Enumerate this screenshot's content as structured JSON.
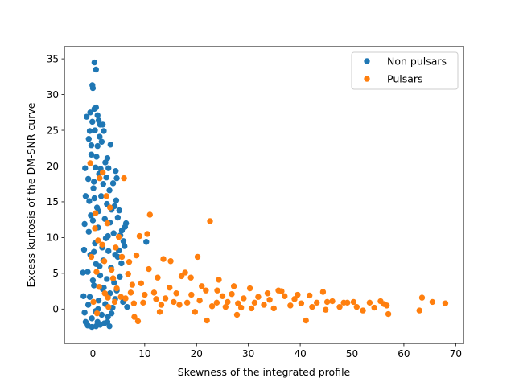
{
  "chart_data": {
    "type": "scatter",
    "title": "",
    "xlabel": "Skewness of the integrated profile",
    "ylabel": "Excess kurtosis of the DM-SNR curve",
    "xlim": [
      -5.5,
      71.5
    ],
    "ylim": [
      -4.8,
      36.7
    ],
    "xticks": [
      0,
      10,
      20,
      30,
      40,
      50,
      60,
      70
    ],
    "yticks": [
      0,
      5,
      10,
      15,
      20,
      25,
      30,
      35
    ],
    "grid": false,
    "legend_position": "top-right",
    "series": [
      {
        "name": "Non pulsars",
        "color": "#1f77b4",
        "points": [
          [
            0.3,
            34.5
          ],
          [
            0.6,
            33.5
          ],
          [
            -0.1,
            31.3
          ],
          [
            0.0,
            30.9
          ],
          [
            -1.2,
            26.9
          ],
          [
            0.3,
            28.0
          ],
          [
            0.6,
            28.2
          ],
          [
            -0.5,
            27.5
          ],
          [
            1.4,
            25.8
          ],
          [
            1.9,
            25.8
          ],
          [
            2.1,
            24.9
          ],
          [
            1.1,
            26.4
          ],
          [
            -0.8,
            23.8
          ],
          [
            3.4,
            23.0
          ],
          [
            2.8,
            21.1
          ],
          [
            3.0,
            19.7
          ],
          [
            4.4,
            19.3
          ],
          [
            4.6,
            18.3
          ],
          [
            3.9,
            17.6
          ],
          [
            4.5,
            15.2
          ],
          [
            4.2,
            14.4
          ],
          [
            5.1,
            13.8
          ],
          [
            4.8,
            12.8
          ],
          [
            6.4,
            12.0
          ],
          [
            6.2,
            11.5
          ],
          [
            5.6,
            11.0
          ],
          [
            5.3,
            10.3
          ],
          [
            5.9,
            9.5
          ],
          [
            6.1,
            8.8
          ],
          [
            10.3,
            9.4
          ],
          [
            5.0,
            8.2
          ],
          [
            4.3,
            7.6
          ],
          [
            -1.5,
            19.7
          ],
          [
            -1.4,
            15.8
          ],
          [
            -1.6,
            11.9
          ],
          [
            -1.7,
            8.3
          ],
          [
            -1.9,
            5.1
          ],
          [
            -1.8,
            1.8
          ],
          [
            -1.6,
            -0.5
          ],
          [
            -1.4,
            -1.8
          ],
          [
            -1.0,
            -2.3
          ],
          [
            -0.2,
            -2.5
          ],
          [
            0.6,
            -2.4
          ],
          [
            1.4,
            -2.2
          ],
          [
            2.2,
            -2.0
          ],
          [
            2.8,
            -1.8
          ],
          [
            3.2,
            -2.4
          ],
          [
            -0.6,
            24.9
          ],
          [
            0.9,
            22.8
          ],
          [
            1.7,
            23.4
          ],
          [
            -0.3,
            21.6
          ],
          [
            2.4,
            20.5
          ],
          [
            0.5,
            19.8
          ],
          [
            1.2,
            18.9
          ],
          [
            -0.9,
            18.2
          ],
          [
            2.0,
            17.5
          ],
          [
            3.2,
            16.6
          ],
          [
            0.1,
            16.9
          ],
          [
            1.6,
            15.8
          ],
          [
            -0.7,
            15.1
          ],
          [
            2.7,
            14.7
          ],
          [
            3.6,
            13.9
          ],
          [
            0.8,
            14.2
          ],
          [
            -0.4,
            13.1
          ],
          [
            2.3,
            12.6
          ],
          [
            3.3,
            12.1
          ],
          [
            1.0,
            11.4
          ],
          [
            -0.8,
            10.8
          ],
          [
            4.0,
            10.6
          ],
          [
            2.5,
            9.9
          ],
          [
            0.4,
            9.2
          ],
          [
            1.8,
            8.6
          ],
          [
            3.0,
            8.1
          ],
          [
            -0.5,
            7.6
          ],
          [
            4.8,
            7.3
          ],
          [
            2.0,
            6.8
          ],
          [
            0.6,
            6.3
          ],
          [
            3.5,
            5.8
          ],
          [
            -1.0,
            5.2
          ],
          [
            1.4,
            4.7
          ],
          [
            2.7,
            4.2
          ],
          [
            4.1,
            3.7
          ],
          [
            0.2,
            3.3
          ],
          [
            1.9,
            2.8
          ],
          [
            3.3,
            2.2
          ],
          [
            -0.6,
            1.7
          ],
          [
            1.1,
            1.2
          ],
          [
            2.4,
            0.7
          ],
          [
            3.8,
            0.2
          ],
          [
            0.5,
            -0.3
          ],
          [
            1.7,
            -0.8
          ],
          [
            -0.2,
            -1.3
          ],
          [
            2.9,
            -1.1
          ],
          [
            0.9,
            -1.8
          ],
          [
            4.3,
            1.4
          ],
          [
            5.2,
            4.5
          ],
          [
            0.0,
            12.4
          ],
          [
            0.2,
            17.8
          ],
          [
            0.7,
            21.3
          ],
          [
            1.3,
            24.1
          ],
          [
            -0.1,
            26.2
          ],
          [
            0.4,
            25.0
          ],
          [
            0.9,
            27.1
          ],
          [
            -0.3,
            22.9
          ],
          [
            1.5,
            19.6
          ],
          [
            2.6,
            18.4
          ],
          [
            0.3,
            15.5
          ],
          [
            1.1,
            13.7
          ],
          [
            2.9,
            10.2
          ],
          [
            0.2,
            8.0
          ],
          [
            1.3,
            6.0
          ],
          [
            0.0,
            4.0
          ],
          [
            2.1,
            3.0
          ],
          [
            1.0,
            0.0
          ],
          [
            -0.9,
            0.6
          ],
          [
            3.6,
            -0.6
          ],
          [
            4.6,
            2.6
          ],
          [
            5.5,
            6.4
          ],
          [
            5.8,
            1.0
          ],
          [
            6.6,
            0.3
          ]
        ]
      },
      {
        "name": "Pulsars",
        "color": "#ff7f0e",
        "points": [
          [
            68.0,
            0.8
          ],
          [
            65.5,
            1.0
          ],
          [
            63.5,
            1.6
          ],
          [
            63.0,
            -0.2
          ],
          [
            57.0,
            -0.7
          ],
          [
            56.2,
            0.7
          ],
          [
            55.5,
            1.1
          ],
          [
            54.3,
            0.2
          ],
          [
            52.1,
            -0.2
          ],
          [
            50.3,
            1.0
          ],
          [
            49.1,
            0.9
          ],
          [
            46.2,
            1.1
          ],
          [
            45.2,
            1.0
          ],
          [
            44.4,
            2.4
          ],
          [
            43.2,
            0.9
          ],
          [
            41.1,
            -1.6
          ],
          [
            40.2,
            0.8
          ],
          [
            38.1,
            0.5
          ],
          [
            37.0,
            1.8
          ],
          [
            35.8,
            2.6
          ],
          [
            34.1,
            1.3
          ],
          [
            33.0,
            0.6
          ],
          [
            31.2,
            0.9
          ],
          [
            30.3,
            2.9
          ],
          [
            29.1,
            1.5
          ],
          [
            28.0,
            0.8
          ],
          [
            27.2,
            3.2
          ],
          [
            26.0,
            1.0
          ],
          [
            25.0,
            1.8
          ],
          [
            24.0,
            2.6
          ],
          [
            23.0,
            0.4
          ],
          [
            22.6,
            12.3
          ],
          [
            22.0,
            -1.6
          ],
          [
            21.0,
            3.2
          ],
          [
            20.2,
            7.3
          ],
          [
            19.0,
            2.0
          ],
          [
            18.2,
            0.9
          ],
          [
            17.1,
            4.6
          ],
          [
            16.1,
            2.2
          ],
          [
            15.0,
            6.7
          ],
          [
            14.0,
            1.5
          ],
          [
            13.2,
            0.6
          ],
          [
            12.5,
            4.4
          ],
          [
            11.0,
            13.2
          ],
          [
            10.5,
            10.5
          ],
          [
            10.0,
            2.0
          ],
          [
            9.0,
            10.2
          ],
          [
            8.7,
            -1.7
          ],
          [
            8.0,
            -1.1
          ],
          [
            7.6,
            3.4
          ],
          [
            7.0,
            6.6
          ],
          [
            6.0,
            18.3
          ],
          [
            5.6,
            7.3
          ],
          [
            5.0,
            10.1
          ],
          [
            4.2,
            1.0
          ],
          [
            3.3,
            14.2
          ],
          [
            2.8,
            12.0
          ],
          [
            2.6,
            15.8
          ],
          [
            1.9,
            19.1
          ],
          [
            1.3,
            18.3
          ],
          [
            0.5,
            13.4
          ],
          [
            -0.5,
            20.4
          ],
          [
            -0.3,
            7.3
          ],
          [
            0.7,
            5.2
          ],
          [
            1.2,
            3.1
          ],
          [
            0.1,
            1.0
          ],
          [
            0.8,
            -0.6
          ],
          [
            1.8,
            9.0
          ],
          [
            2.3,
            2.2
          ],
          [
            3.0,
            0.3
          ],
          [
            3.9,
            4.3
          ],
          [
            4.6,
            2.9
          ],
          [
            6.3,
            1.5
          ],
          [
            7.9,
            0.8
          ],
          [
            9.3,
            3.6
          ],
          [
            11.8,
            2.3
          ],
          [
            12.9,
            -0.4
          ],
          [
            14.8,
            3.0
          ],
          [
            16.7,
            0.6
          ],
          [
            18.9,
            4.4
          ],
          [
            20.6,
            1.2
          ],
          [
            23.9,
            0.9
          ],
          [
            26.8,
            2.1
          ],
          [
            28.6,
            0.2
          ],
          [
            31.9,
            1.7
          ],
          [
            34.9,
            0.1
          ],
          [
            36.4,
            2.5
          ],
          [
            38.9,
            1.4
          ],
          [
            42.3,
            0.3
          ],
          [
            47.6,
            0.3
          ],
          [
            53.4,
            0.9
          ],
          [
            27.8,
            -0.8
          ],
          [
            30.6,
            0.1
          ],
          [
            4.4,
            8.6
          ],
          [
            2.2,
            6.7
          ],
          [
            1.0,
            9.6
          ],
          [
            0.4,
            11.3
          ],
          [
            3.6,
            5.5
          ],
          [
            6.8,
            4.9
          ],
          [
            8.4,
            7.5
          ],
          [
            10.8,
            5.6
          ],
          [
            13.6,
            7.0
          ],
          [
            17.8,
            5.1
          ],
          [
            24.3,
            4.1
          ],
          [
            5.4,
            1.7
          ],
          [
            9.7,
            0.9
          ],
          [
            15.6,
            1.0
          ],
          [
            19.7,
            -0.4
          ],
          [
            21.8,
            2.6
          ],
          [
            25.6,
            0.3
          ],
          [
            33.7,
            2.2
          ],
          [
            39.5,
            2.0
          ],
          [
            41.8,
            1.9
          ],
          [
            44.9,
            -0.1
          ],
          [
            48.4,
            0.9
          ],
          [
            50.9,
            0.3
          ],
          [
            56.7,
            0.5
          ],
          [
            12.2,
            1.4
          ],
          [
            7.3,
            2.3
          ],
          [
            2.9,
            1.6
          ]
        ]
      }
    ]
  }
}
